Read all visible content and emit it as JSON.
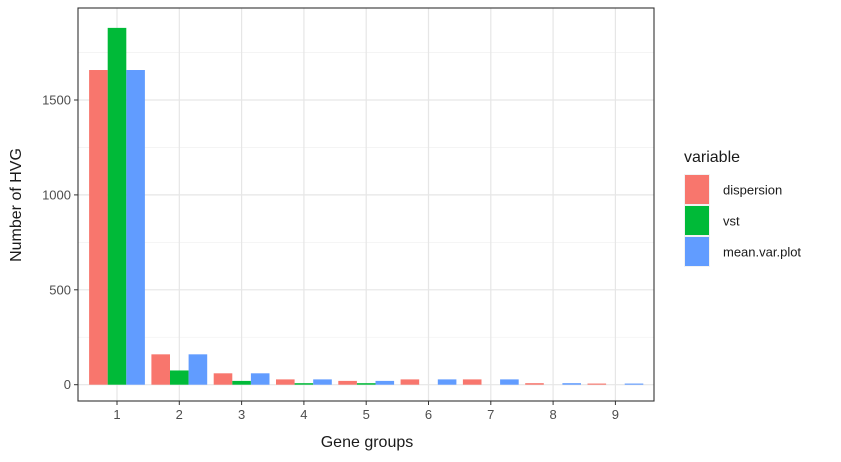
{
  "chart_data": {
    "type": "bar",
    "xlabel": "Gene groups",
    "ylabel": "Number of HVG",
    "categories": [
      "1",
      "2",
      "3",
      "4",
      "5",
      "6",
      "7",
      "8",
      "9"
    ],
    "series": [
      {
        "name": "dispersion",
        "color": "#F8766D",
        "values": [
          1658,
          160,
          60,
          28,
          20,
          28,
          28,
          8,
          6
        ]
      },
      {
        "name": "vst",
        "color": "#00BA38",
        "values": [
          1880,
          75,
          20,
          8,
          8,
          0,
          0,
          0,
          0
        ]
      },
      {
        "name": "mean.var.plot",
        "color": "#619CFF",
        "values": [
          1658,
          160,
          60,
          28,
          20,
          28,
          28,
          8,
          6
        ]
      }
    ],
    "yticks": [
      0,
      500,
      1000,
      1500
    ],
    "ylim": [
      0,
      1960
    ],
    "legend": {
      "title": "variable",
      "placement": "right"
    },
    "grid": true
  }
}
